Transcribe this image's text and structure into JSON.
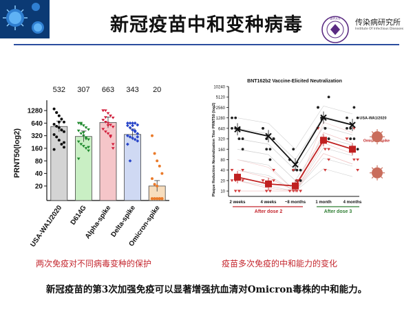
{
  "title": "新冠疫苗中和变种病毒",
  "institute": {
    "name": "传染病研究所",
    "subtitle": "Institute Of Infectious Diseases",
    "seal_text": "清华大学"
  },
  "colors": {
    "accent": "#c4262e",
    "rule": "#2a4d9e",
    "green": "#2e7d32"
  },
  "left_caption": "两次免疫对不同病毒变种的保护",
  "right_caption": "疫苗多次免疫的中和能力的变化",
  "footer": "新冠疫苗的第3次加强免疫可以显著增强抗血清对Omicron毒株的中和能力。",
  "chart_data": [
    {
      "type": "bar",
      "ylabel": "PRNT50(log2)",
      "y_ticks": [
        "20",
        "40",
        "80",
        "160",
        "320",
        "640",
        "1280"
      ],
      "categories": [
        "USA-WA1/2020",
        "D614G",
        "Alpha-spike",
        "Delta-spike",
        "Omicron-spike"
      ],
      "values": [
        532,
        307,
        663,
        343,
        20
      ],
      "value_labels": [
        "532",
        "307",
        "663",
        "343",
        "20"
      ],
      "bar_colors": [
        "#d4d4d4",
        "#c9efc4",
        "#f5c6c9",
        "#cfd9f3",
        "#f7ddbd"
      ],
      "point_colors": [
        "#111111",
        "#1f8a2e",
        "#d21f3c",
        "#2845c8",
        "#ea7a2a"
      ],
      "points": [
        [
          1400,
          1150,
          960,
          800,
          680,
          600,
          540,
          500,
          440,
          400,
          340,
          300,
          250,
          200,
          170,
          150,
          1150,
          680,
          440,
          220
        ],
        [
          640,
          600,
          560,
          500,
          450,
          420,
          360,
          320,
          290,
          260,
          230,
          200,
          180,
          160,
          140,
          90,
          640,
          380,
          270,
          170
        ],
        [
          1280,
          1280,
          1100,
          960,
          860,
          760,
          680,
          640,
          580,
          520,
          460,
          400,
          360,
          320,
          200,
          1280,
          880,
          560,
          300,
          160
        ],
        [
          640,
          640,
          640,
          640,
          580,
          560,
          500,
          440,
          400,
          360,
          320,
          300,
          280,
          260,
          240,
          200,
          80,
          560,
          420,
          300
        ],
        [
          320,
          120,
          80,
          60,
          40,
          30,
          22,
          20,
          10,
          10,
          10,
          10,
          10,
          10,
          10,
          10,
          10,
          10,
          10,
          10
        ]
      ]
    },
    {
      "type": "line",
      "title": "BNT162b2 Vaccine-Elicited Neutralization",
      "ylabel": "Plaque Reduction Neutralization Titer PRNT50 (log2)",
      "y_ticks": [
        "10",
        "20",
        "40",
        "80",
        "160",
        "320",
        "640",
        "1280",
        "2560",
        "5120",
        "10240"
      ],
      "categories": [
        "2 weeks",
        "4 weeks",
        "~8 months",
        "1 month",
        "4 months"
      ],
      "groups": [
        "After dose 2",
        "After dose 3"
      ],
      "series": [
        {
          "name": "USA-WA1/2020",
          "values": [
            600,
            380,
            58,
            1300,
            800
          ]
        },
        {
          "name": "Omicron-spike",
          "values": [
            25,
            16,
            14,
            290,
            160
          ]
        }
      ]
    }
  ]
}
